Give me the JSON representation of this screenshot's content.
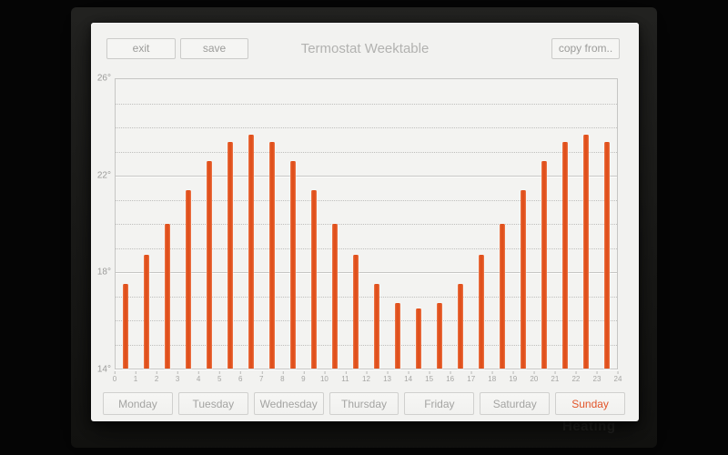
{
  "app": {
    "title": "Termostat Weektable",
    "toolbar": {
      "exit": "exit",
      "save": "save",
      "copy_from": "copy from.."
    }
  },
  "background": {
    "ghost_text": "Heating"
  },
  "chart_data": {
    "type": "bar",
    "title": "Termostat Weektable",
    "xlabel": "",
    "ylabel": "",
    "categories": [
      0,
      1,
      2,
      3,
      4,
      5,
      6,
      7,
      8,
      9,
      10,
      11,
      12,
      13,
      14,
      15,
      16,
      17,
      18,
      19,
      20,
      21,
      22,
      23
    ],
    "values": [
      17.5,
      18.7,
      20.0,
      21.4,
      22.6,
      23.4,
      23.7,
      23.4,
      22.6,
      21.4,
      20.0,
      18.7,
      17.5,
      16.7,
      16.5,
      16.7,
      17.5,
      18.7,
      20.0,
      21.4,
      22.6,
      23.4,
      23.7,
      23.4
    ],
    "ylim": [
      14,
      26
    ],
    "x_tick_labels": [
      "0",
      "1",
      "2",
      "3",
      "4",
      "5",
      "6",
      "7",
      "8",
      "9",
      "10",
      "11",
      "12",
      "13",
      "14",
      "15",
      "16",
      "17",
      "18",
      "19",
      "20",
      "21",
      "22",
      "23",
      "24"
    ],
    "y_tick_labels": [
      {
        "label": "26°",
        "value": 26
      },
      {
        "label": "22°",
        "value": 22
      },
      {
        "label": "18°",
        "value": 18
      },
      {
        "label": "14°",
        "value": 14
      }
    ],
    "grid": {
      "minor_step": 1,
      "minor_style": "dotted",
      "major_step": 4,
      "major_style": "solid",
      "orientation": "horizontal"
    },
    "bar_color": "#e0501c",
    "bar_edge_color": "#ed7a4c",
    "legend": null
  },
  "days": {
    "selected": "Sunday",
    "selected_color": "#e2552a",
    "items": [
      {
        "label": "Monday",
        "selected": false
      },
      {
        "label": "Tuesday",
        "selected": false
      },
      {
        "label": "Wednesday",
        "selected": false
      },
      {
        "label": "Thursday",
        "selected": false
      },
      {
        "label": "Friday",
        "selected": false
      },
      {
        "label": "Saturday",
        "selected": false
      },
      {
        "label": "Sunday",
        "selected": true
      }
    ]
  }
}
